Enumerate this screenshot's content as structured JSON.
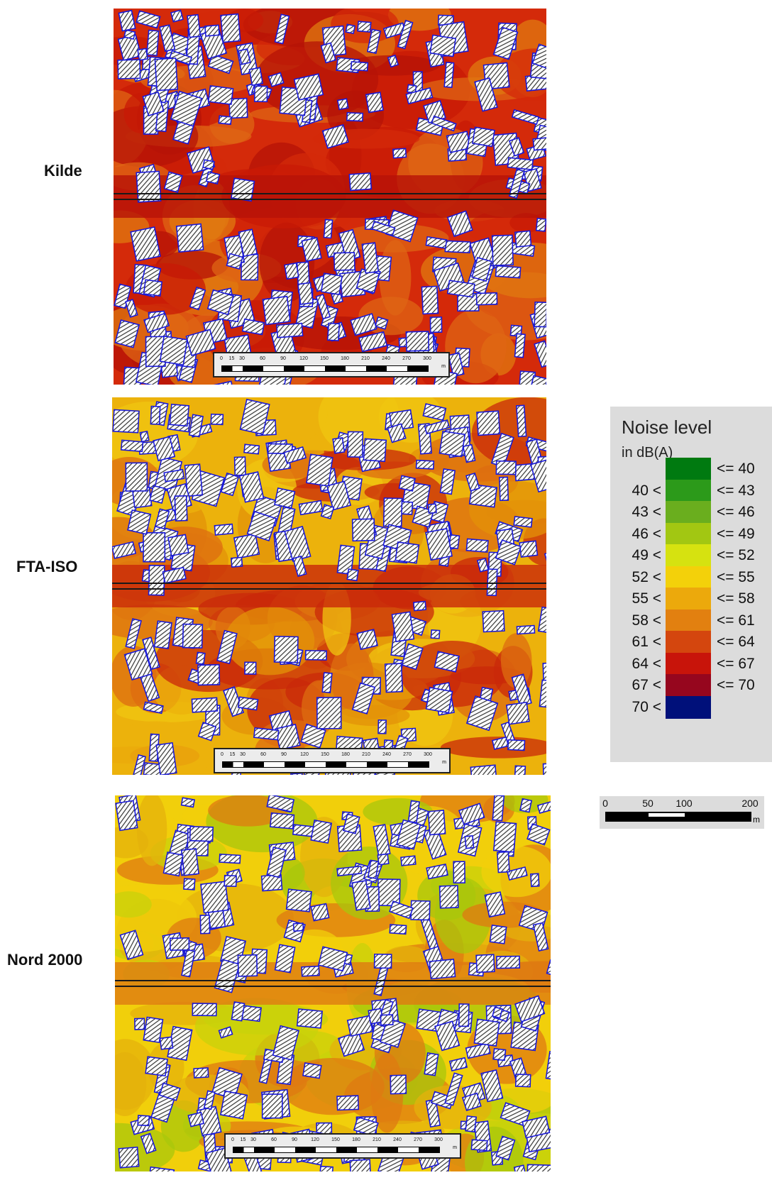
{
  "maps": [
    {
      "label": "Kilde",
      "palette": [
        "#d42a0a",
        "#c81a06",
        "#b61307",
        "#df6514",
        "#e07a10"
      ]
    },
    {
      "label": "FTA-ISO",
      "palette": [
        "#ecb20c",
        "#f0c510",
        "#e39208",
        "#de6c10",
        "#c9280a"
      ]
    },
    {
      "label": "Nord 2000",
      "palette": [
        "#f1cf0b",
        "#e4b10c",
        "#c8d20b",
        "#a8c70c",
        "#df7a12"
      ]
    }
  ],
  "map_scalebar": {
    "ticks": [
      "0",
      "15",
      "30",
      "60",
      "90",
      "120",
      "150",
      "180",
      "210",
      "240",
      "270",
      "300"
    ],
    "unit": "m"
  },
  "legend": {
    "title": "Noise level",
    "unit": "in dB(A)",
    "rows": [
      {
        "lo": "",
        "hi": "<= 40",
        "color": "#007a10"
      },
      {
        "lo": "40 <",
        "hi": "<= 43",
        "color": "#2c9a1a"
      },
      {
        "lo": "43 <",
        "hi": "<= 46",
        "color": "#6aae1e"
      },
      {
        "lo": "46 <",
        "hi": "<= 49",
        "color": "#a2c712"
      },
      {
        "lo": "49 <",
        "hi": "<= 52",
        "color": "#d6e210"
      },
      {
        "lo": "52 <",
        "hi": "<= 55",
        "color": "#f3d10a"
      },
      {
        "lo": "55 <",
        "hi": "<= 58",
        "color": "#eca90c"
      },
      {
        "lo": "58 <",
        "hi": "<= 61",
        "color": "#e28010"
      },
      {
        "lo": "61 <",
        "hi": "<= 64",
        "color": "#d4460e"
      },
      {
        "lo": "64 <",
        "hi": "<= 67",
        "color": "#c8140a"
      },
      {
        "lo": "67 <",
        "hi": "<= 70",
        "color": "#96061e"
      },
      {
        "lo": "70 <",
        "hi": "",
        "color": "#00107a"
      }
    ]
  },
  "mini_scale": {
    "ticks": [
      "0",
      "50",
      "100",
      "200"
    ],
    "unit": "m"
  },
  "colors": {
    "building_outline": "#1a1ad8",
    "road": "#1a1a1a"
  }
}
